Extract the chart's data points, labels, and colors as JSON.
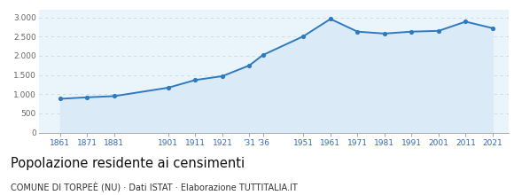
{
  "years": [
    1861,
    1871,
    1881,
    1901,
    1911,
    1921,
    1931,
    1936,
    1951,
    1961,
    1971,
    1981,
    1991,
    2001,
    2011,
    2021
  ],
  "population": [
    880,
    920,
    950,
    1170,
    1370,
    1470,
    1750,
    2020,
    2510,
    2960,
    2630,
    2580,
    2630,
    2650,
    2890,
    2720
  ],
  "ytick_values": [
    0,
    500,
    1000,
    1500,
    2000,
    2500,
    3000
  ],
  "ylim": [
    0,
    3200
  ],
  "xlim_min": 1853,
  "xlim_max": 2027,
  "line_color": "#2e7abf",
  "fill_color": "#daeaf7",
  "marker_color": "#2e7abf",
  "background_color": "#eaf4fb",
  "title": "Popolazione residente ai censimenti",
  "subtitle": "COMUNE DI TORPEÈ (NU) · Dati ISTAT · Elaborazione TUTTITALIA.IT",
  "title_fontsize": 10.5,
  "subtitle_fontsize": 7,
  "axis_label_color": "#3366bb",
  "ytick_color": "#666666",
  "grid_color": "#c5d8e8",
  "xtick_positions": [
    1861,
    1871,
    1881,
    1901,
    1911,
    1921,
    1931,
    1936,
    1951,
    1961,
    1971,
    1981,
    1991,
    2001,
    2011,
    2021
  ],
  "xtick_labels": [
    "1861",
    "1871",
    "1881",
    "1901",
    "1911",
    "1921",
    "'31",
    "'36",
    "1951",
    "1961",
    "1971",
    "1981",
    "1991",
    "2001",
    "2011",
    "2021"
  ]
}
